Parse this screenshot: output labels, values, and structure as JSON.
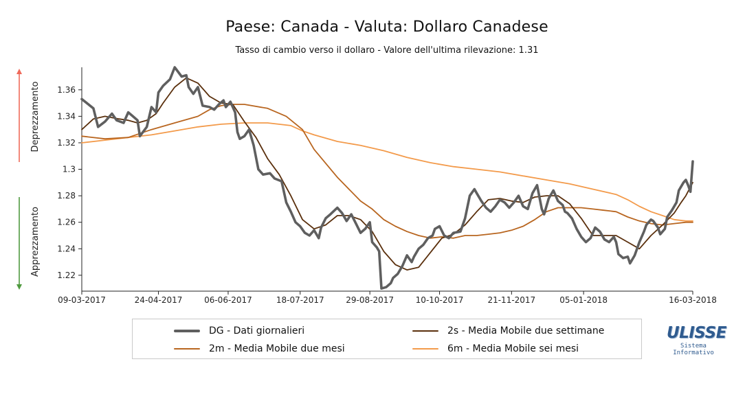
{
  "title": "Paese: Canada - Valuta: Dollaro Canadese",
  "subtitle": "Tasso di cambio verso il dollaro - Valore dell'ultima rilevazione: 1.31",
  "side_labels": {
    "top": "Deprezzamento",
    "bottom": "Apprezzamento"
  },
  "legend": [
    {
      "key": "dg",
      "label": "DG - Dati giornalieri"
    },
    {
      "key": "s2",
      "label": "2s - Media Mobile due settimane"
    },
    {
      "key": "m2",
      "label": "2m - Media Mobile due mesi"
    },
    {
      "key": "m6",
      "label": "6m - Media Mobile sei mesi"
    }
  ],
  "logo": {
    "name": "ULISSE",
    "line1": "Sistema",
    "line2": "Informativo"
  },
  "colors": {
    "dg": "#5f5f5f",
    "s2": "#5a2f0c",
    "m2": "#b8651f",
    "m6": "#f39a4a",
    "arrow_up": "#ef6a5a",
    "arrow_down": "#4f9a3f"
  },
  "chart_data": {
    "type": "line",
    "x_ticks": [
      "09-03-2017",
      "24-04-2017",
      "06-06-2017",
      "18-07-2017",
      "29-08-2017",
      "10-10-2017",
      "21-11-2017",
      "05-01-2018",
      "16-03-2018"
    ],
    "x_tick_index": [
      0,
      33,
      63,
      94,
      124,
      154,
      185,
      216,
      263
    ],
    "y_ticks": [
      1.22,
      1.24,
      1.26,
      1.28,
      1.3,
      1.32,
      1.34,
      1.36
    ],
    "ylim": [
      1.208,
      1.377
    ],
    "grid": false,
    "legend_position": "bottom",
    "series": [
      {
        "name": "DG - Dati giornalieri",
        "key": "dg",
        "anchors": [
          [
            0,
            1.353
          ],
          [
            5,
            1.346
          ],
          [
            7,
            1.332
          ],
          [
            10,
            1.336
          ],
          [
            13,
            1.342
          ],
          [
            15,
            1.337
          ],
          [
            18,
            1.335
          ],
          [
            20,
            1.343
          ],
          [
            22,
            1.34
          ],
          [
            24,
            1.337
          ],
          [
            25,
            1.325
          ],
          [
            28,
            1.332
          ],
          [
            30,
            1.347
          ],
          [
            32,
            1.343
          ],
          [
            33,
            1.358
          ],
          [
            35,
            1.363
          ],
          [
            38,
            1.368
          ],
          [
            40,
            1.377
          ],
          [
            43,
            1.37
          ],
          [
            45,
            1.371
          ],
          [
            46,
            1.362
          ],
          [
            48,
            1.357
          ],
          [
            50,
            1.362
          ],
          [
            52,
            1.348
          ],
          [
            55,
            1.347
          ],
          [
            57,
            1.345
          ],
          [
            59,
            1.349
          ],
          [
            61,
            1.352
          ],
          [
            62,
            1.347
          ],
          [
            64,
            1.351
          ],
          [
            66,
            1.343
          ],
          [
            67,
            1.328
          ],
          [
            68,
            1.323
          ],
          [
            70,
            1.325
          ],
          [
            72,
            1.33
          ],
          [
            74,
            1.318
          ],
          [
            76,
            1.3
          ],
          [
            78,
            1.296
          ],
          [
            81,
            1.297
          ],
          [
            83,
            1.293
          ],
          [
            86,
            1.291
          ],
          [
            88,
            1.275
          ],
          [
            90,
            1.268
          ],
          [
            92,
            1.26
          ],
          [
            94,
            1.257
          ],
          [
            96,
            1.252
          ],
          [
            98,
            1.25
          ],
          [
            100,
            1.254
          ],
          [
            102,
            1.248
          ],
          [
            103,
            1.256
          ],
          [
            105,
            1.263
          ],
          [
            107,
            1.266
          ],
          [
            110,
            1.271
          ],
          [
            112,
            1.267
          ],
          [
            114,
            1.261
          ],
          [
            116,
            1.266
          ],
          [
            118,
            1.259
          ],
          [
            120,
            1.252
          ],
          [
            122,
            1.255
          ],
          [
            124,
            1.26
          ],
          [
            125,
            1.245
          ],
          [
            127,
            1.241
          ],
          [
            128,
            1.238
          ],
          [
            129,
            1.21
          ],
          [
            131,
            1.211
          ],
          [
            133,
            1.214
          ],
          [
            134,
            1.218
          ],
          [
            136,
            1.221
          ],
          [
            138,
            1.227
          ],
          [
            140,
            1.235
          ],
          [
            142,
            1.23
          ],
          [
            143,
            1.234
          ],
          [
            145,
            1.24
          ],
          [
            147,
            1.243
          ],
          [
            149,
            1.248
          ],
          [
            151,
            1.25
          ],
          [
            152,
            1.255
          ],
          [
            154,
            1.257
          ],
          [
            156,
            1.25
          ],
          [
            158,
            1.248
          ],
          [
            160,
            1.252
          ],
          [
            163,
            1.253
          ],
          [
            165,
            1.263
          ],
          [
            167,
            1.28
          ],
          [
            169,
            1.285
          ],
          [
            170,
            1.282
          ],
          [
            172,
            1.276
          ],
          [
            174,
            1.271
          ],
          [
            176,
            1.268
          ],
          [
            178,
            1.272
          ],
          [
            180,
            1.277
          ],
          [
            182,
            1.275
          ],
          [
            184,
            1.271
          ],
          [
            186,
            1.275
          ],
          [
            188,
            1.28
          ],
          [
            190,
            1.272
          ],
          [
            192,
            1.27
          ],
          [
            194,
            1.282
          ],
          [
            196,
            1.288
          ],
          [
            198,
            1.27
          ],
          [
            199,
            1.266
          ],
          [
            201,
            1.278
          ],
          [
            203,
            1.284
          ],
          [
            205,
            1.276
          ],
          [
            207,
            1.273
          ],
          [
            208,
            1.268
          ],
          [
            209,
            1.267
          ],
          [
            211,
            1.263
          ],
          [
            213,
            1.255
          ],
          [
            215,
            1.249
          ],
          [
            217,
            1.245
          ],
          [
            219,
            1.248
          ],
          [
            221,
            1.256
          ],
          [
            223,
            1.253
          ],
          [
            225,
            1.247
          ],
          [
            227,
            1.245
          ],
          [
            229,
            1.249
          ],
          [
            230,
            1.245
          ],
          [
            231,
            1.236
          ],
          [
            233,
            1.233
          ],
          [
            235,
            1.234
          ],
          [
            236,
            1.229
          ],
          [
            238,
            1.235
          ],
          [
            240,
            1.245
          ],
          [
            242,
            1.253
          ],
          [
            243,
            1.258
          ],
          [
            245,
            1.262
          ],
          [
            246,
            1.261
          ],
          [
            248,
            1.256
          ],
          [
            249,
            1.251
          ],
          [
            251,
            1.255
          ],
          [
            252,
            1.264
          ],
          [
            254,
            1.269
          ],
          [
            256,
            1.275
          ],
          [
            257,
            1.284
          ],
          [
            259,
            1.29
          ],
          [
            260,
            1.292
          ],
          [
            261,
            1.288
          ],
          [
            262,
            1.283
          ],
          [
            263,
            1.306
          ]
        ]
      },
      {
        "name": "2s - Media Mobile due settimane",
        "key": "s2",
        "anchors": [
          [
            0,
            1.33
          ],
          [
            5,
            1.338
          ],
          [
            10,
            1.34
          ],
          [
            16,
            1.338
          ],
          [
            20,
            1.337
          ],
          [
            24,
            1.335
          ],
          [
            28,
            1.337
          ],
          [
            32,
            1.342
          ],
          [
            35,
            1.35
          ],
          [
            40,
            1.362
          ],
          [
            45,
            1.369
          ],
          [
            50,
            1.365
          ],
          [
            55,
            1.355
          ],
          [
            60,
            1.35
          ],
          [
            65,
            1.349
          ],
          [
            70,
            1.336
          ],
          [
            75,
            1.324
          ],
          [
            80,
            1.308
          ],
          [
            85,
            1.296
          ],
          [
            90,
            1.28
          ],
          [
            95,
            1.262
          ],
          [
            100,
            1.255
          ],
          [
            105,
            1.258
          ],
          [
            110,
            1.265
          ],
          [
            115,
            1.265
          ],
          [
            120,
            1.262
          ],
          [
            125,
            1.253
          ],
          [
            130,
            1.238
          ],
          [
            135,
            1.228
          ],
          [
            140,
            1.224
          ],
          [
            145,
            1.226
          ],
          [
            150,
            1.237
          ],
          [
            155,
            1.248
          ],
          [
            160,
            1.251
          ],
          [
            165,
            1.258
          ],
          [
            170,
            1.268
          ],
          [
            175,
            1.277
          ],
          [
            180,
            1.278
          ],
          [
            185,
            1.276
          ],
          [
            190,
            1.275
          ],
          [
            195,
            1.279
          ],
          [
            200,
            1.28
          ],
          [
            205,
            1.28
          ],
          [
            210,
            1.274
          ],
          [
            215,
            1.263
          ],
          [
            220,
            1.25
          ],
          [
            225,
            1.25
          ],
          [
            230,
            1.25
          ],
          [
            235,
            1.245
          ],
          [
            240,
            1.24
          ],
          [
            245,
            1.25
          ],
          [
            250,
            1.258
          ],
          [
            255,
            1.267
          ],
          [
            258,
            1.275
          ],
          [
            260,
            1.28
          ],
          [
            263,
            1.29
          ]
        ]
      },
      {
        "name": "2m - Media Mobile due mesi",
        "key": "m2",
        "anchors": [
          [
            0,
            1.325
          ],
          [
            10,
            1.323
          ],
          [
            20,
            1.324
          ],
          [
            30,
            1.33
          ],
          [
            40,
            1.335
          ],
          [
            50,
            1.34
          ],
          [
            55,
            1.345
          ],
          [
            60,
            1.348
          ],
          [
            65,
            1.349
          ],
          [
            70,
            1.349
          ],
          [
            80,
            1.346
          ],
          [
            88,
            1.34
          ],
          [
            95,
            1.33
          ],
          [
            100,
            1.315
          ],
          [
            110,
            1.294
          ],
          [
            120,
            1.276
          ],
          [
            125,
            1.27
          ],
          [
            130,
            1.262
          ],
          [
            135,
            1.257
          ],
          [
            140,
            1.253
          ],
          [
            145,
            1.25
          ],
          [
            150,
            1.248
          ],
          [
            155,
            1.249
          ],
          [
            160,
            1.248
          ],
          [
            165,
            1.25
          ],
          [
            170,
            1.25
          ],
          [
            175,
            1.251
          ],
          [
            180,
            1.252
          ],
          [
            185,
            1.254
          ],
          [
            190,
            1.257
          ],
          [
            195,
            1.262
          ],
          [
            200,
            1.268
          ],
          [
            205,
            1.271
          ],
          [
            210,
            1.271
          ],
          [
            215,
            1.271
          ],
          [
            220,
            1.27
          ],
          [
            225,
            1.269
          ],
          [
            230,
            1.268
          ],
          [
            235,
            1.264
          ],
          [
            240,
            1.261
          ],
          [
            245,
            1.259
          ],
          [
            250,
            1.258
          ],
          [
            255,
            1.259
          ],
          [
            260,
            1.26
          ],
          [
            263,
            1.26
          ]
        ]
      },
      {
        "name": "6m - Media Mobile sei mesi",
        "key": "m6",
        "anchors": [
          [
            0,
            1.32
          ],
          [
            10,
            1.322
          ],
          [
            20,
            1.324
          ],
          [
            30,
            1.326
          ],
          [
            40,
            1.329
          ],
          [
            50,
            1.332
          ],
          [
            60,
            1.334
          ],
          [
            70,
            1.335
          ],
          [
            80,
            1.335
          ],
          [
            90,
            1.333
          ],
          [
            95,
            1.329
          ],
          [
            100,
            1.326
          ],
          [
            110,
            1.321
          ],
          [
            120,
            1.318
          ],
          [
            130,
            1.314
          ],
          [
            140,
            1.309
          ],
          [
            150,
            1.305
          ],
          [
            160,
            1.302
          ],
          [
            170,
            1.3
          ],
          [
            180,
            1.298
          ],
          [
            190,
            1.295
          ],
          [
            200,
            1.292
          ],
          [
            210,
            1.289
          ],
          [
            220,
            1.285
          ],
          [
            230,
            1.281
          ],
          [
            235,
            1.277
          ],
          [
            240,
            1.272
          ],
          [
            245,
            1.268
          ],
          [
            250,
            1.265
          ],
          [
            255,
            1.262
          ],
          [
            260,
            1.261
          ],
          [
            263,
            1.261
          ]
        ]
      }
    ]
  }
}
